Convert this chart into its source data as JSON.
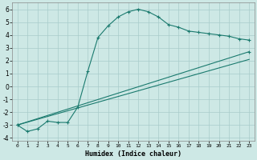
{
  "xlabel": "Humidex (Indice chaleur)",
  "background_color": "#cde8e5",
  "grid_color": "#a8ccca",
  "line_color": "#1a7a6e",
  "xlim": [
    -0.5,
    23.5
  ],
  "ylim": [
    -4.2,
    6.5
  ],
  "xtick_labels": [
    "0",
    "1",
    "2",
    "3",
    "4",
    "5",
    "6",
    "7",
    "8",
    "9",
    "10",
    "11",
    "12",
    "13",
    "14",
    "15",
    "16",
    "17",
    "18",
    "19",
    "20",
    "21",
    "22",
    "23"
  ],
  "xtick_pos": [
    0,
    1,
    2,
    3,
    4,
    5,
    6,
    7,
    8,
    9,
    10,
    11,
    12,
    13,
    14,
    15,
    16,
    17,
    18,
    19,
    20,
    21,
    22,
    23
  ],
  "ytick_pos": [
    -4,
    -3,
    -2,
    -1,
    0,
    1,
    2,
    3,
    4,
    5,
    6
  ],
  "ytick_labels": [
    "-4",
    "-3",
    "-2",
    "-1",
    "0",
    "1",
    "2",
    "3",
    "4",
    "5",
    "6"
  ],
  "line1_x": [
    0,
    1,
    2,
    3,
    4,
    5,
    6,
    7,
    8,
    9,
    10,
    11,
    12,
    13,
    14,
    15,
    16,
    17,
    18,
    19,
    20,
    21,
    22,
    23
  ],
  "line1_y": [
    -3.0,
    -3.5,
    -3.3,
    -2.7,
    -2.8,
    -2.8,
    -1.6,
    1.2,
    3.8,
    4.7,
    5.4,
    5.8,
    6.0,
    5.8,
    5.4,
    4.8,
    4.6,
    4.3,
    4.2,
    4.1,
    4.0,
    3.9,
    3.7,
    3.6
  ],
  "line2_x": [
    0,
    23
  ],
  "line2_y": [
    -3.0,
    2.7
  ],
  "line3_x": [
    0,
    23
  ],
  "line3_y": [
    -3.0,
    2.1
  ],
  "line1_has_markers": true,
  "line2_has_markers": true,
  "line3_has_markers": false
}
